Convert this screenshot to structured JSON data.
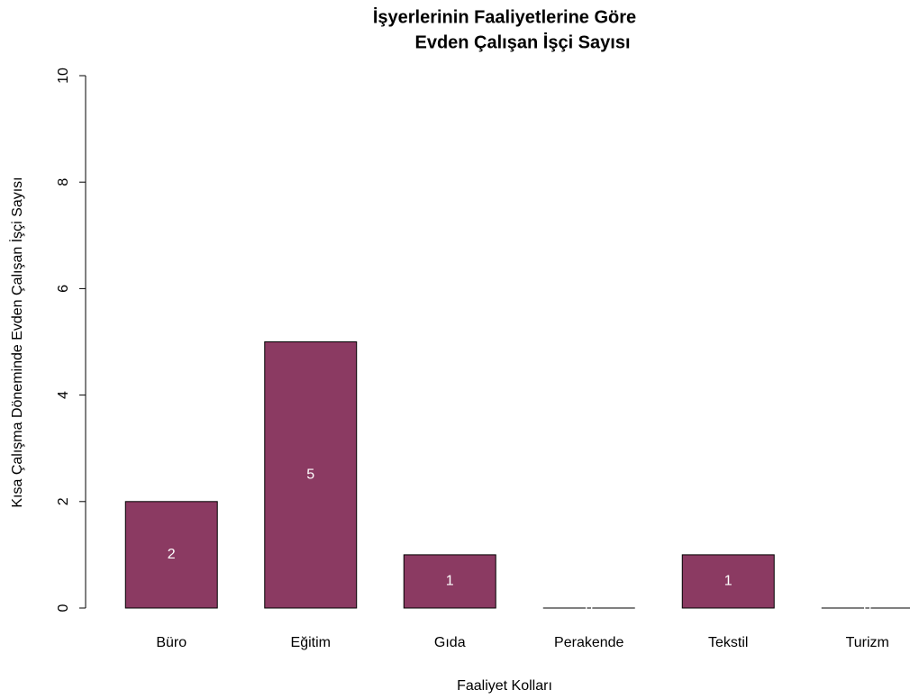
{
  "chart_data": {
    "type": "bar",
    "title": [
      "İşyerlerinin Faaliyetlerine Göre",
      "Evden Çalışan İşçi Sayısı"
    ],
    "x_label": "Faaliyet Kolları",
    "y_label": "Kısa Çalışma Döneminde Evden Çalışan İşçi Sayısı",
    "categories": [
      "Büro",
      "Eğitim",
      "Gıda",
      "Perakende",
      "Tekstil",
      "Turizm"
    ],
    "values": [
      2,
      5,
      1,
      0,
      1,
      0
    ],
    "color": "#8b3a62",
    "ylim": [
      0,
      10
    ],
    "yticks": [
      0,
      2,
      4,
      6,
      8,
      10
    ]
  }
}
